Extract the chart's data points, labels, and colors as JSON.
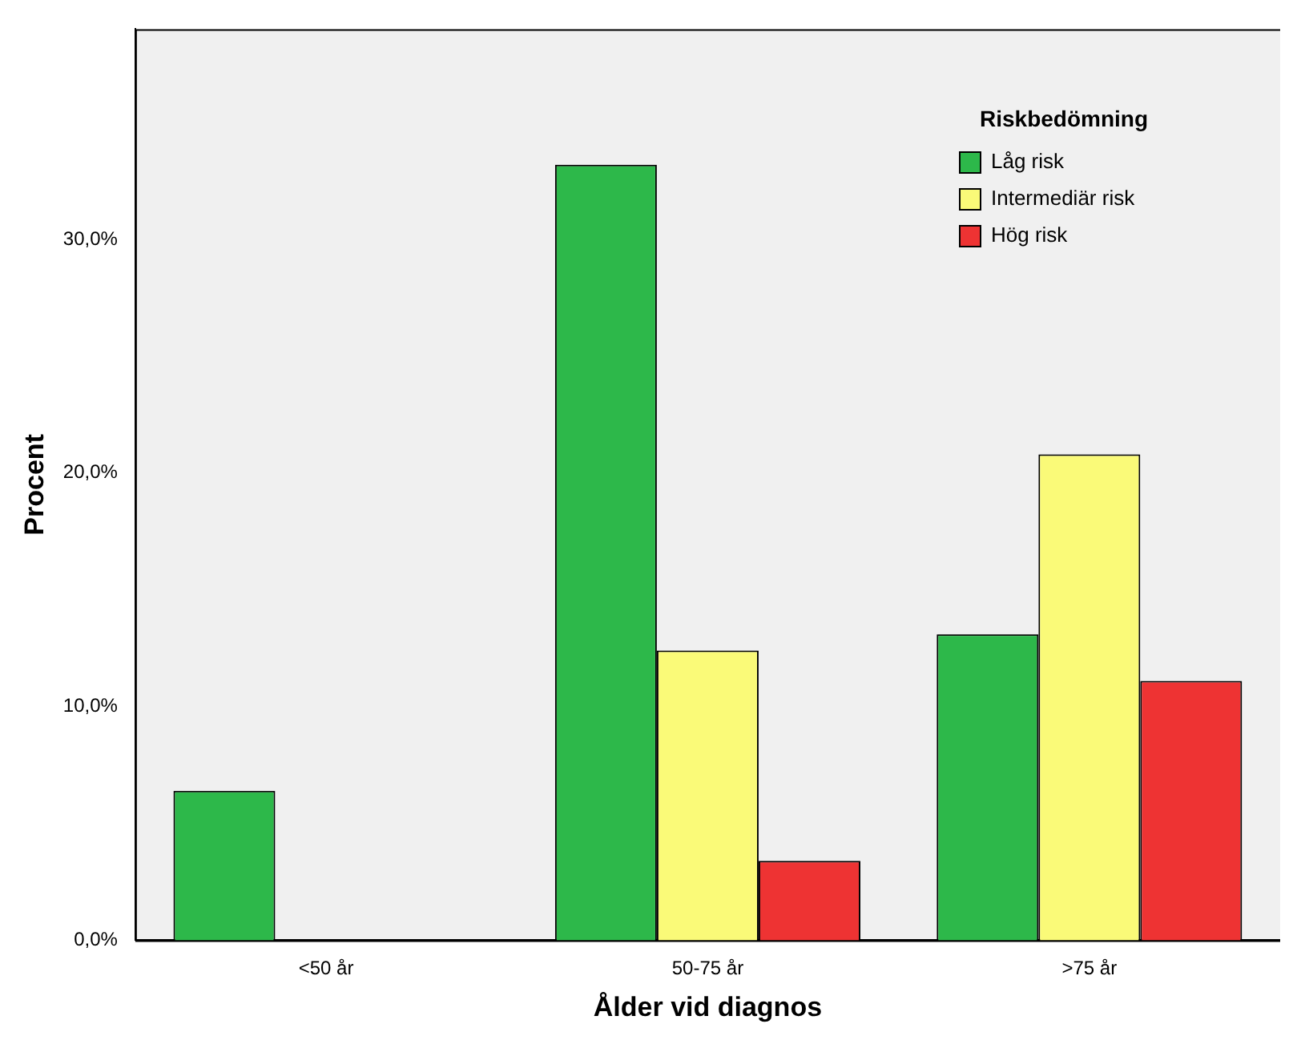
{
  "chart_data": {
    "type": "bar",
    "xlabel": "Ålder vid diagnos",
    "ylabel": "Procent",
    "legend_title": "Riskbedömning",
    "legend": "top right",
    "grid": false,
    "categories": [
      "<50 år",
      "50-75 år",
      ">75 år"
    ],
    "series": [
      {
        "name": "Låg risk",
        "color": "#2db84a",
        "values": [
          6.4,
          33.2,
          13.1
        ]
      },
      {
        "name": "Intermediär risk",
        "color": "#fafa78",
        "values": [
          null,
          12.4,
          20.8
        ]
      },
      {
        "name": "Hög risk",
        "color": "#ee3333",
        "values": [
          null,
          3.4,
          11.1
        ]
      }
    ],
    "ylim": [
      0,
      39
    ],
    "yticks": [
      {
        "value": 0,
        "label": "0,0%"
      },
      {
        "value": 10,
        "label": "10,0%"
      },
      {
        "value": 20,
        "label": "20,0%"
      },
      {
        "value": 30,
        "label": "30,0%"
      }
    ]
  }
}
